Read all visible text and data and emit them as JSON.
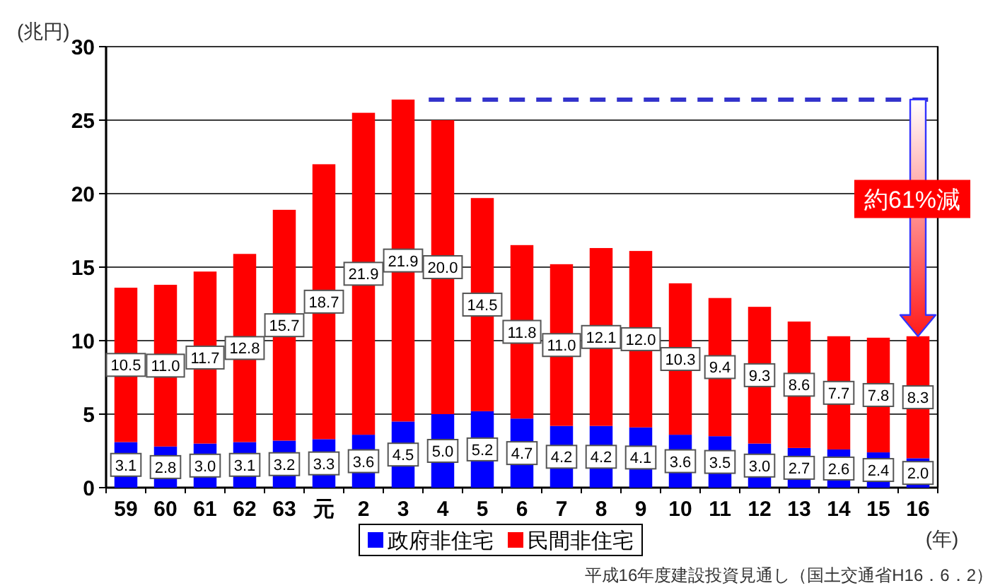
{
  "chart_data": {
    "type": "bar",
    "stacked": true,
    "ylabel": "(兆円)",
    "xlabel": "(年)",
    "categories": [
      "59",
      "60",
      "61",
      "62",
      "63",
      "元",
      "2",
      "3",
      "4",
      "5",
      "6",
      "7",
      "8",
      "9",
      "10",
      "11",
      "12",
      "13",
      "14",
      "15",
      "16"
    ],
    "series": [
      {
        "name": "政府非住宅",
        "color": "#0000ff",
        "values": [
          3.1,
          2.8,
          3.0,
          3.1,
          3.2,
          3.3,
          3.6,
          4.5,
          5.0,
          5.2,
          4.7,
          4.2,
          4.2,
          4.1,
          3.6,
          3.5,
          3.0,
          2.7,
          2.6,
          2.4,
          2.0
        ],
        "value_labels": [
          "3.1",
          "2.8",
          "3.0",
          "3.1",
          "3.2",
          "3.3",
          "3.6",
          "4.5",
          "5.0",
          "5.2",
          "4.7",
          "4.2",
          "4.2",
          "4.1",
          "3.6",
          "3.5",
          "3.0",
          "2.7",
          "2.6",
          "2.4",
          "2.0"
        ]
      },
      {
        "name": "民間非住宅",
        "color": "#ff0000",
        "values": [
          10.5,
          11.0,
          11.7,
          12.8,
          15.7,
          18.7,
          21.9,
          21.9,
          20.0,
          14.5,
          11.8,
          11.0,
          12.1,
          12.0,
          10.3,
          9.4,
          9.3,
          8.6,
          7.7,
          7.8,
          8.3
        ],
        "value_labels": [
          "10.5",
          "11.0",
          "11.7",
          "12.8",
          "15.7",
          "18.7",
          "21.9",
          "21.9",
          "20.0",
          "14.5",
          "11.8",
          "11.0",
          "12.1",
          "12.0",
          "10.3",
          "9.4",
          "9.3",
          "8.6",
          "7.7",
          "7.8",
          "8.3"
        ]
      }
    ],
    "ylim": [
      0,
      30
    ],
    "yticks": [
      0,
      5,
      10,
      15,
      20,
      25,
      30
    ],
    "grid": "y",
    "legend": "bottom",
    "ref_lines": [
      {
        "axis": "y",
        "value": 26.4,
        "color": "#3333cc",
        "line_style": "dashed"
      }
    ],
    "annotations": [
      "約61%減",
      "平成16年度建設投資見通し（国土交通省H16．6．2）"
    ]
  }
}
